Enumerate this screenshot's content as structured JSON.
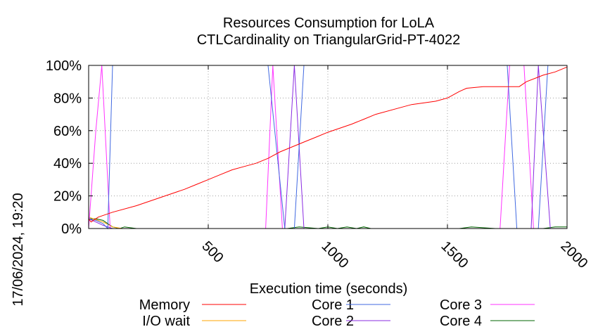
{
  "chart_data": {
    "type": "line",
    "title": "Resources Consumption for LoLA",
    "subtitle": "CTLCardinality on TriangularGrid-PT-4022",
    "xlabel": "Execution time (seconds)",
    "ylabel": "",
    "xlim": [
      0,
      2000
    ],
    "ylim": [
      0,
      100
    ],
    "x_ticks": [
      500,
      1000,
      1500,
      2000
    ],
    "y_ticks": [
      0,
      20,
      40,
      60,
      80,
      100
    ],
    "y_tick_labels": [
      "0%",
      "20%",
      "40%",
      "60%",
      "80%",
      "100%"
    ],
    "grid": true,
    "legend_position": "bottom",
    "timestamp": "17/06/2024, 19:20",
    "series": [
      {
        "name": "Memory",
        "color": "#ff0000",
        "points": [
          [
            0,
            6
          ],
          [
            10,
            4
          ],
          [
            40,
            7
          ],
          [
            100,
            10
          ],
          [
            200,
            14
          ],
          [
            300,
            19
          ],
          [
            400,
            24
          ],
          [
            450,
            27
          ],
          [
            500,
            30
          ],
          [
            550,
            33
          ],
          [
            600,
            36
          ],
          [
            650,
            38
          ],
          [
            700,
            40
          ],
          [
            750,
            43
          ],
          [
            800,
            47
          ],
          [
            850,
            50
          ],
          [
            900,
            53
          ],
          [
            950,
            56
          ],
          [
            1000,
            59
          ],
          [
            1100,
            64
          ],
          [
            1150,
            67
          ],
          [
            1200,
            70
          ],
          [
            1300,
            74
          ],
          [
            1350,
            76
          ],
          [
            1400,
            77
          ],
          [
            1450,
            78
          ],
          [
            1500,
            80
          ],
          [
            1550,
            84
          ],
          [
            1580,
            86
          ],
          [
            1650,
            87
          ],
          [
            1750,
            87
          ],
          [
            1800,
            87
          ],
          [
            1830,
            90
          ],
          [
            1900,
            94
          ],
          [
            1950,
            96
          ],
          [
            2000,
            99
          ]
        ]
      },
      {
        "name": "I/O wait",
        "color": "#ffa500",
        "points": [
          [
            0,
            7
          ],
          [
            20,
            6
          ],
          [
            60,
            4
          ],
          [
            100,
            1
          ],
          [
            140,
            0
          ],
          [
            2000,
            0
          ]
        ]
      },
      {
        "name": "Core 1",
        "color": "#4169e1",
        "points": [
          [
            0,
            6
          ],
          [
            30,
            5
          ],
          [
            60,
            3
          ],
          [
            80,
            0
          ],
          [
            100,
            100
          ],
          [
            110,
            100
          ],
          [
            750,
            100
          ],
          [
            820,
            0
          ],
          [
            860,
            0
          ],
          [
            900,
            100
          ],
          [
            1750,
            100
          ],
          [
            1790,
            0
          ],
          [
            1880,
            0
          ],
          [
            1920,
            100
          ],
          [
            2000,
            100
          ]
        ]
      },
      {
        "name": "Core 2",
        "color": "#8a2be2",
        "points": [
          [
            0,
            6
          ],
          [
            30,
            4
          ],
          [
            60,
            2
          ],
          [
            100,
            0
          ],
          [
            820,
            0
          ],
          [
            860,
            100
          ],
          [
            900,
            0
          ],
          [
            1850,
            0
          ],
          [
            1880,
            100
          ],
          [
            1930,
            0
          ],
          [
            2000,
            0
          ]
        ]
      },
      {
        "name": "Core 3",
        "color": "#ff33ff",
        "points": [
          [
            0,
            0
          ],
          [
            30,
            60
          ],
          [
            55,
            100
          ],
          [
            90,
            0
          ],
          [
            740,
            0
          ],
          [
            770,
            100
          ],
          [
            810,
            0
          ],
          [
            1720,
            0
          ],
          [
            1760,
            100
          ],
          [
            1820,
            100
          ],
          [
            1860,
            0
          ],
          [
            2000,
            0
          ]
        ]
      },
      {
        "name": "Core 4",
        "color": "#006400",
        "points": [
          [
            0,
            6
          ],
          [
            30,
            6
          ],
          [
            60,
            5
          ],
          [
            100,
            1
          ],
          [
            130,
            0
          ],
          [
            150,
            1
          ],
          [
            200,
            0
          ],
          [
            830,
            0
          ],
          [
            880,
            1
          ],
          [
            960,
            0
          ],
          [
            1000,
            1
          ],
          [
            1040,
            0
          ],
          [
            1080,
            1
          ],
          [
            1120,
            0
          ],
          [
            1150,
            1
          ],
          [
            1180,
            0
          ],
          [
            1550,
            0
          ],
          [
            1600,
            1
          ],
          [
            1700,
            0
          ],
          [
            1900,
            0
          ],
          [
            1950,
            1
          ],
          [
            2000,
            1
          ]
        ]
      }
    ]
  }
}
